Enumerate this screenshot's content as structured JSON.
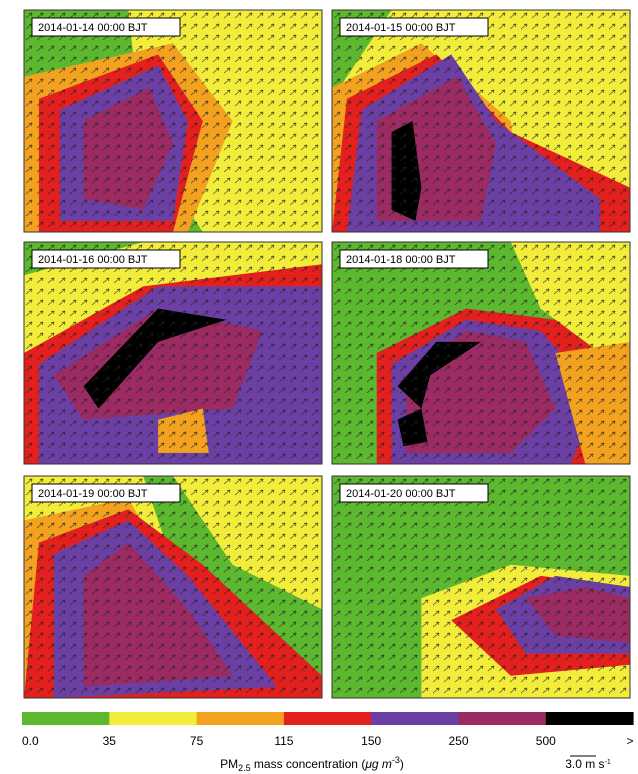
{
  "panels": [
    {
      "label": "2014-01-14 00:00 BJT"
    },
    {
      "label": "2014-01-15 00:00 BJT"
    },
    {
      "label": "2014-01-16 00:00 BJT"
    },
    {
      "label": "2014-01-18 00:00 BJT"
    },
    {
      "label": "2014-01-19 00:00 BJT"
    },
    {
      "label": "2014-01-20 00:00 BJT"
    }
  ],
  "colorbar": {
    "labels": [
      "0.0",
      "35",
      "75",
      "115",
      "150",
      "250",
      "500",
      ">"
    ],
    "colors": [
      "#5cb82e",
      "#f2ec3a",
      "#f3a21f",
      "#e3201d",
      "#6b3fa3",
      "#9b2b62",
      "#000000"
    ],
    "title": {
      "main": "PM",
      "sub": "2.5",
      "rest": " mass concentration (",
      "unit": "μg m",
      "sup": "-3",
      "close": ")"
    }
  },
  "wind_scale": {
    "value": "3.0 m s",
    "sup": "-1"
  }
}
